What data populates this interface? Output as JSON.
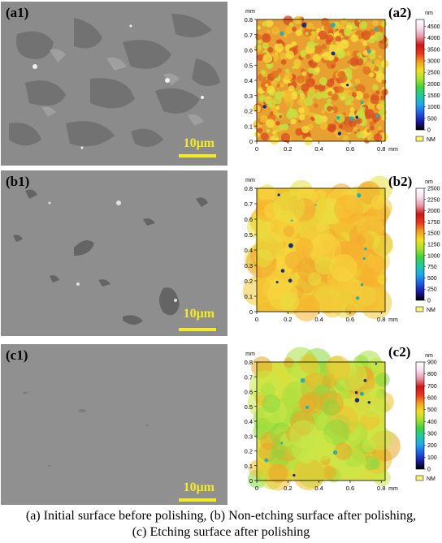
{
  "panels": [
    {
      "sem_label": "(a1)",
      "afm_label": "(a2)",
      "scale_bar": "10μm",
      "afm": {
        "unit": "nm",
        "colorbar_ticks": [
          "4500",
          "4000",
          "3500",
          "3000",
          "2500",
          "2000",
          "1500",
          "1000",
          "500",
          "0"
        ],
        "colorbar_max": 4800,
        "legend": "NM",
        "axis_unit": "mm",
        "x_ticks": [
          "0",
          "0.2",
          "0.4",
          "0.6",
          "0.8"
        ],
        "y_ticks": [
          "0.8",
          "0.7",
          "0.6",
          "0.5",
          "0.4",
          "0.3",
          "0.2",
          "0.1",
          "0"
        ]
      },
      "surface_color": "#8a8a8a"
    },
    {
      "sem_label": "(b1)",
      "afm_label": "(b2)",
      "scale_bar": "10μm",
      "afm": {
        "unit": "nm",
        "colorbar_ticks": [
          "2500",
          "2250",
          "2000",
          "1750",
          "1500",
          "1250",
          "1000",
          "750",
          "500",
          "250",
          "0"
        ],
        "colorbar_max": 2500,
        "legend": "NM",
        "axis_unit": "mm",
        "x_ticks": [
          "0",
          "0.2",
          "0.4",
          "0.6",
          "0.8"
        ],
        "y_ticks": [
          "0.8",
          "0.7",
          "0.6",
          "0.5",
          "0.4",
          "0.3",
          "0.2",
          "0.1",
          "0"
        ]
      },
      "surface_color": "#8e8e8e"
    },
    {
      "sem_label": "(c1)",
      "afm_label": "(c2)",
      "scale_bar": "10μm",
      "afm": {
        "unit": "nm",
        "colorbar_ticks": [
          "900",
          "800",
          "700",
          "600",
          "500",
          "400",
          "300",
          "200",
          "100",
          "0"
        ],
        "colorbar_max": 900,
        "legend": "NM",
        "axis_unit": "mm",
        "x_ticks": [
          "0",
          "0.2",
          "0.4",
          "0.6",
          "0.8"
        ],
        "y_ticks": [
          "0.8",
          "0.7",
          "0.6",
          "0.5",
          "0.4",
          "0.3",
          "0.2",
          "0.1",
          "0"
        ]
      },
      "surface_color": "#8f8f8f"
    }
  ],
  "caption": {
    "line1": "(a) Initial surface before polishing, (b) Non-etching surface after polishing,",
    "line2": "(c) Etching surface after polishing"
  },
  "colors": {
    "scale_bar": "#f4ec22",
    "legend_swatch": "#f7f07a"
  }
}
